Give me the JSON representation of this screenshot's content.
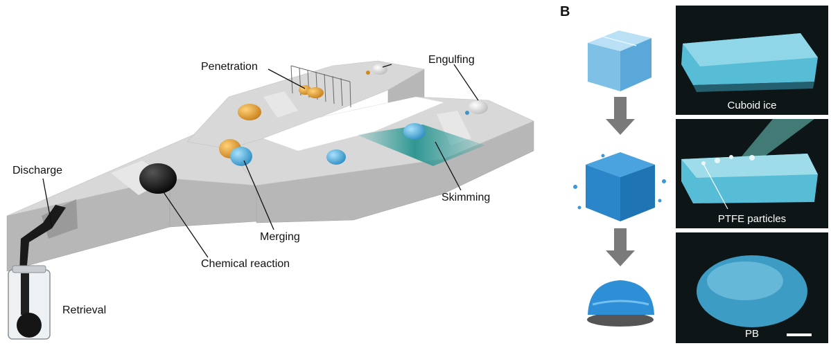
{
  "panel_label": "B",
  "labels": {
    "discharge": "Discharge",
    "penetration": "Penetration",
    "engulfing": "Engulfing",
    "skimming": "Skimming",
    "merging": "Merging",
    "chemical_reaction": "Chemical reaction",
    "retrieval": "Retrieval"
  },
  "photos": [
    {
      "caption": "Cuboid ice"
    },
    {
      "caption": "PTFE particles"
    },
    {
      "caption": "PB"
    }
  ],
  "colors": {
    "track_top": "#d6d6d6",
    "track_side": "#b7b7b7",
    "orange_droplet": "#e8a431",
    "blue_droplet": "#5fb6e3",
    "black_droplet": "#1a1a1a",
    "skim_zone": "#1e8f8a",
    "arrow": "#7a7a7a",
    "photo_bg": "#0d1517",
    "ice_blue": "#57bcd6"
  }
}
